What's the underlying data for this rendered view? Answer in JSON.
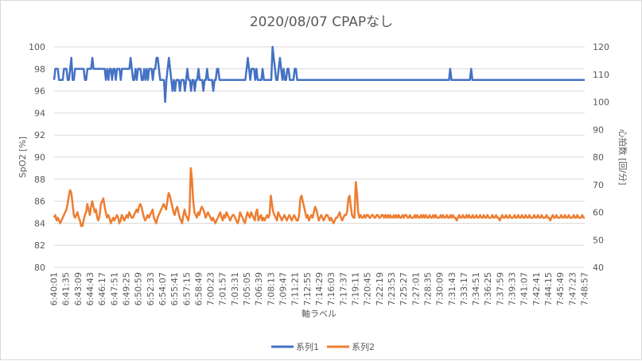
{
  "chart_data": {
    "type": "line",
    "title": "2020/08/07 CPAPなし",
    "xlabel": "軸ラベル",
    "ylabel": "SpO2 [%]",
    "y2label": "心拍数 [回/分]",
    "ylim": [
      80,
      100
    ],
    "y2lim": [
      40,
      120
    ],
    "yticks": [
      "80",
      "82",
      "84",
      "86",
      "88",
      "90",
      "92",
      "94",
      "96",
      "98",
      "100"
    ],
    "y2ticks": [
      "40",
      "50",
      "60",
      "70",
      "80",
      "90",
      "100",
      "110",
      "120"
    ],
    "grid": true,
    "legend_position": "bottom",
    "x_tick_labels": [
      "6:40:01",
      "6:41:35",
      "6:43:09",
      "6:44:43",
      "6:46:17",
      "6:47:51",
      "6:49:25",
      "6:50:59",
      "6:52:33",
      "6:54:07",
      "6:55:41",
      "6:57:15",
      "6:58:49",
      "7:00:23",
      "7:01:57",
      "7:03:31",
      "7:05:05",
      "7:06:39",
      "7:08:13",
      "7:09:47",
      "7:11:21",
      "7:12:55",
      "7:14:29",
      "7:16:03",
      "7:17:37",
      "7:19:11",
      "7:20:45",
      "7:22:19",
      "7:23:53",
      "7:25:27",
      "7:27:01",
      "7:28:35",
      "7:30:09",
      "7:31:43",
      "7:33:17",
      "7:34:51",
      "7:36:25",
      "7:37:59",
      "7:39:33",
      "7:41:07",
      "7:42:41",
      "7:44:15",
      "7:45:49",
      "7:47:23",
      "7:48:57"
    ],
    "series": [
      {
        "name": "系列1",
        "axis": "left",
        "color": "#4472c4",
        "values": [
          97,
          98,
          98,
          98,
          97,
          97,
          97,
          97,
          98,
          98,
          98,
          97,
          97,
          98,
          99,
          97,
          97,
          98,
          98,
          98,
          98,
          98,
          98,
          98,
          98,
          97,
          97,
          98,
          98,
          98,
          98,
          99,
          98,
          98,
          98,
          98,
          98,
          98,
          98,
          98,
          98,
          98,
          97,
          98,
          97,
          98,
          98,
          97,
          98,
          98,
          97,
          98,
          98,
          98,
          97,
          98,
          98,
          98,
          98,
          98,
          98,
          98,
          99,
          98,
          97,
          97,
          98,
          97,
          98,
          98,
          98,
          97,
          97,
          98,
          97,
          98,
          97,
          98,
          98,
          98,
          97,
          98,
          98,
          99,
          99,
          98,
          97,
          97,
          97,
          97,
          95,
          97,
          98,
          99,
          98,
          97,
          96,
          97,
          96,
          97,
          97,
          97,
          96,
          97,
          97,
          97,
          96,
          97,
          98,
          97,
          97,
          96,
          97,
          97,
          96,
          97,
          97,
          98,
          97,
          97,
          97,
          96,
          97,
          97,
          98,
          97,
          97,
          97,
          97,
          96,
          97,
          97,
          98,
          98,
          97,
          97,
          97,
          97,
          97,
          97,
          97,
          97,
          97,
          97,
          97,
          97,
          97,
          97,
          97,
          97,
          97,
          97,
          97,
          97,
          97,
          97,
          98,
          99,
          98,
          97,
          98,
          98,
          98,
          97,
          98,
          97,
          97,
          97,
          97,
          98,
          97,
          97,
          97,
          97,
          97,
          97,
          97,
          100,
          99,
          98,
          97,
          97,
          98,
          99,
          98,
          97,
          98,
          97,
          97,
          98,
          98,
          97,
          97,
          97,
          97,
          98,
          98,
          97,
          97,
          97,
          97,
          97,
          97,
          97,
          97,
          97,
          97,
          97,
          97,
          97,
          97,
          97,
          97,
          97,
          97,
          97,
          97,
          97,
          97,
          97,
          97,
          97,
          97,
          97,
          97,
          97,
          97,
          97,
          97,
          97,
          97,
          97,
          97,
          97,
          97,
          97,
          97,
          97,
          97,
          97,
          97,
          97,
          97,
          97,
          97,
          97,
          97,
          97,
          97,
          97,
          97,
          97,
          97,
          97,
          97,
          97,
          97,
          97,
          97,
          97,
          97,
          97,
          97,
          97,
          97,
          97,
          97,
          97,
          97,
          97,
          97,
          97,
          97,
          97,
          97,
          97,
          97,
          97,
          97,
          97,
          97,
          97,
          97,
          97,
          97,
          97,
          97,
          97,
          97,
          97,
          97,
          97,
          97,
          97,
          97,
          97,
          97,
          97,
          97,
          97,
          97,
          97,
          97,
          97,
          97,
          97,
          97,
          97,
          97,
          97,
          97,
          97,
          97,
          97,
          97,
          97,
          97,
          97,
          97,
          97,
          97,
          98,
          97,
          97,
          97,
          97,
          97,
          97,
          97,
          97,
          97,
          97,
          97,
          97,
          97,
          97,
          97,
          97,
          98,
          97,
          97,
          97,
          97,
          97,
          97,
          97,
          97,
          97,
          97,
          97,
          97,
          97,
          97,
          97,
          97,
          97,
          97,
          97,
          97,
          97,
          97,
          97,
          97,
          97,
          97,
          97,
          97,
          97,
          97,
          97,
          97,
          97,
          97,
          97,
          97,
          97,
          97,
          97,
          97,
          97,
          97,
          97,
          97,
          97,
          97,
          97,
          97,
          97,
          97,
          97,
          97,
          97,
          97,
          97,
          97,
          97,
          97,
          97,
          97,
          97,
          97,
          97,
          97,
          97,
          97,
          97,
          97,
          97,
          97,
          97,
          97,
          97,
          97,
          97,
          97,
          97,
          97,
          97,
          97,
          97,
          97,
          97,
          97,
          97,
          97,
          97,
          97,
          97,
          97,
          97,
          97
        ]
      },
      {
        "name": "系列2",
        "axis": "right",
        "color": "#ed7d31",
        "values": [
          58,
          59,
          57,
          58,
          57,
          56,
          57,
          58,
          59,
          60,
          61,
          63,
          66,
          68,
          67,
          63,
          59,
          58,
          59,
          60,
          58,
          57,
          55,
          55,
          57,
          59,
          60,
          63,
          61,
          59,
          62,
          64,
          62,
          60,
          61,
          58,
          57,
          59,
          63,
          64,
          65,
          62,
          60,
          58,
          59,
          58,
          56,
          57,
          58,
          57,
          58,
          59,
          58,
          56,
          57,
          59,
          58,
          57,
          58,
          59,
          58,
          60,
          59,
          58,
          58,
          59,
          60,
          61,
          60,
          62,
          63,
          62,
          60,
          58,
          57,
          58,
          59,
          58,
          59,
          60,
          61,
          58,
          57,
          56,
          58,
          59,
          60,
          61,
          62,
          63,
          62,
          61,
          64,
          67,
          66,
          64,
          62,
          60,
          59,
          61,
          62,
          60,
          58,
          57,
          56,
          59,
          61,
          59,
          58,
          57,
          60,
          76,
          72,
          64,
          60,
          59,
          58,
          60,
          59,
          61,
          62,
          61,
          60,
          58,
          59,
          60,
          59,
          58,
          57,
          58,
          57,
          56,
          57,
          58,
          59,
          60,
          58,
          57,
          59,
          58,
          60,
          59,
          58,
          57,
          58,
          59,
          59,
          58,
          57,
          56,
          57,
          60,
          59,
          58,
          57,
          56,
          58,
          60,
          59,
          58,
          60,
          59,
          58,
          57,
          60,
          61,
          57,
          58,
          59,
          57,
          58,
          57,
          58,
          59,
          58,
          59,
          66,
          63,
          60,
          59,
          58,
          57,
          60,
          59,
          58,
          57,
          58,
          59,
          58,
          57,
          58,
          59,
          58,
          57,
          58,
          59,
          58,
          57,
          57,
          59,
          65,
          66,
          64,
          62,
          60,
          58,
          59,
          57,
          58,
          59,
          58,
          60,
          62,
          61,
          59,
          57,
          58,
          59,
          58,
          57,
          58,
          59,
          59,
          58,
          57,
          58,
          57,
          56,
          57,
          58,
          58,
          59,
          60,
          58,
          57,
          58,
          59,
          59,
          60,
          65,
          66,
          62,
          59,
          58,
          58,
          71,
          67,
          60,
          58,
          59,
          58,
          58,
          59,
          58,
          59,
          59,
          58,
          58,
          59,
          59,
          58,
          58,
          59,
          59,
          58,
          58,
          59,
          59,
          58,
          59,
          58,
          59,
          58,
          59,
          58,
          58,
          59,
          58,
          59,
          58,
          59,
          58,
          58,
          59,
          58,
          59,
          59,
          58,
          58,
          59,
          58,
          58,
          58,
          59,
          58,
          59,
          58,
          58,
          59,
          58,
          59,
          58,
          59,
          58,
          58,
          59,
          58,
          58,
          59,
          58,
          59,
          58,
          58,
          58,
          59,
          58,
          59,
          58,
          58,
          59,
          58,
          58,
          59,
          58,
          59,
          58,
          58,
          57,
          58,
          59,
          58,
          58,
          59,
          58,
          58,
          59,
          58,
          59,
          58,
          58,
          59,
          58,
          58,
          59,
          58,
          58,
          59,
          58,
          58,
          59,
          58,
          58,
          59,
          58,
          58,
          58,
          59,
          58,
          58,
          59,
          58,
          58,
          57,
          58,
          59,
          58,
          58,
          59,
          58,
          58,
          59,
          58,
          58,
          58,
          59,
          58,
          58,
          59,
          58,
          58,
          59,
          58,
          58,
          59,
          58,
          58,
          59,
          58,
          58,
          58,
          59,
          58,
          58,
          59,
          58,
          58,
          59,
          58,
          58,
          58,
          59,
          58,
          58,
          57,
          58,
          59,
          58,
          58,
          59,
          58,
          58,
          58,
          59,
          58,
          58,
          59,
          58,
          58,
          59,
          58,
          58,
          58,
          59,
          58,
          58,
          59,
          58,
          58,
          58,
          59,
          58,
          58
        ]
      }
    ]
  }
}
